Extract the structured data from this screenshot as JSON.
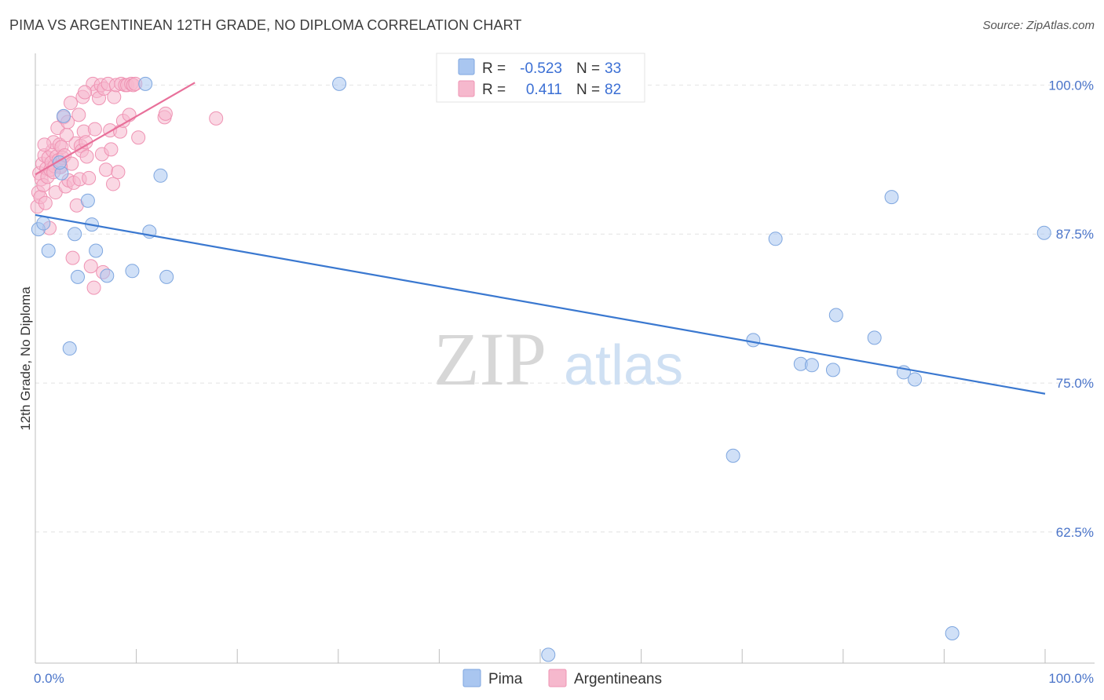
{
  "title": "PIMA VS ARGENTINEAN 12TH GRADE, NO DIPLOMA CORRELATION CHART",
  "source": "Source: ZipAtlas.com",
  "watermark": {
    "zip": "ZIP",
    "atlas": "atlas"
  },
  "legend": {
    "rows": [
      {
        "r_label": "R =",
        "r_value": "-0.523",
        "n_label": "N =",
        "n_value": "33"
      },
      {
        "r_label": "R =",
        "r_value": "0.411",
        "n_label": "N =",
        "n_value": "82"
      }
    ]
  },
  "chart_data": {
    "type": "scatter",
    "xlabel": "",
    "ylabel": "12th Grade, No Diploma",
    "xlim": [
      0,
      100
    ],
    "ylim": [
      51.5,
      102
    ],
    "x_tick_labels": [
      "0.0%",
      "100.0%"
    ],
    "y_ticks": [
      {
        "value": 100,
        "label": "100.0%"
      },
      {
        "value": 87.5,
        "label": "87.5%"
      },
      {
        "value": 75,
        "label": "75.0%"
      },
      {
        "value": 62.5,
        "label": "62.5%"
      }
    ],
    "grid": true,
    "series": [
      {
        "name": "Pima",
        "color": "#a9c6f0",
        "stroke": "#7ea6df",
        "line_color": "#3a78d0",
        "trend": [
          [
            0,
            89.1
          ],
          [
            100,
            74.1
          ]
        ],
        "points": [
          [
            0.3,
            87.9
          ],
          [
            0.8,
            88.4
          ],
          [
            1.3,
            86.1
          ],
          [
            2.6,
            92.6
          ],
          [
            2.8,
            97.4
          ],
          [
            3.4,
            77.9
          ],
          [
            3.9,
            87.5
          ],
          [
            4.2,
            83.9
          ],
          [
            5.2,
            90.3
          ],
          [
            5.6,
            88.3
          ],
          [
            6.0,
            86.1
          ],
          [
            7.1,
            84.0
          ],
          [
            9.6,
            84.4
          ],
          [
            10.9,
            100.1
          ],
          [
            11.3,
            87.7
          ],
          [
            12.4,
            92.4
          ],
          [
            13.0,
            83.9
          ],
          [
            30.1,
            100.1
          ],
          [
            50.8,
            52.2
          ],
          [
            69.1,
            68.9
          ],
          [
            71.1,
            78.6
          ],
          [
            73.3,
            87.1
          ],
          [
            75.8,
            76.6
          ],
          [
            76.9,
            76.5
          ],
          [
            79.0,
            76.1
          ],
          [
            79.3,
            80.7
          ],
          [
            83.1,
            78.8
          ],
          [
            84.8,
            90.6
          ],
          [
            86.0,
            75.9
          ],
          [
            87.1,
            75.3
          ],
          [
            90.8,
            54.0
          ],
          [
            99.9,
            87.6
          ],
          [
            2.4,
            93.5
          ]
        ]
      },
      {
        "name": "Argentineans",
        "color": "#f6b8cd",
        "stroke": "#ef93b3",
        "line_color": "#e8709a",
        "trend": [
          [
            0,
            92.5
          ],
          [
            15.8,
            100.2
          ]
        ],
        "points": [
          [
            0.2,
            89.8
          ],
          [
            0.3,
            91.0
          ],
          [
            0.4,
            92.6
          ],
          [
            0.5,
            90.6
          ],
          [
            0.6,
            92.1
          ],
          [
            0.7,
            93.4
          ],
          [
            0.8,
            91.6
          ],
          [
            0.9,
            94.1
          ],
          [
            1.0,
            90.1
          ],
          [
            1.1,
            93.0
          ],
          [
            1.2,
            92.3
          ],
          [
            1.3,
            93.9
          ],
          [
            1.4,
            88.0
          ],
          [
            1.5,
            92.9
          ],
          [
            1.6,
            93.5
          ],
          [
            1.7,
            94.5
          ],
          [
            1.8,
            95.2
          ],
          [
            1.9,
            93.2
          ],
          [
            2.0,
            91.0
          ],
          [
            2.1,
            94.0
          ],
          [
            2.2,
            96.4
          ],
          [
            2.3,
            93.7
          ],
          [
            2.4,
            95.0
          ],
          [
            2.5,
            93.2
          ],
          [
            2.6,
            94.8
          ],
          [
            2.7,
            93.9
          ],
          [
            2.8,
            97.3
          ],
          [
            2.9,
            94.1
          ],
          [
            3.0,
            91.5
          ],
          [
            3.2,
            96.9
          ],
          [
            3.3,
            92.0
          ],
          [
            3.5,
            98.5
          ],
          [
            3.6,
            93.4
          ],
          [
            3.7,
            85.5
          ],
          [
            3.8,
            91.8
          ],
          [
            4.0,
            95.1
          ],
          [
            4.1,
            89.9
          ],
          [
            4.3,
            97.5
          ],
          [
            4.4,
            92.1
          ],
          [
            4.5,
            94.9
          ],
          [
            4.6,
            94.5
          ],
          [
            4.7,
            99.0
          ],
          [
            4.8,
            96.1
          ],
          [
            5.0,
            95.2
          ],
          [
            5.1,
            94.0
          ],
          [
            5.3,
            92.2
          ],
          [
            5.5,
            84.8
          ],
          [
            5.7,
            100.1
          ],
          [
            5.8,
            83.0
          ],
          [
            5.9,
            96.3
          ],
          [
            6.1,
            99.5
          ],
          [
            6.3,
            98.9
          ],
          [
            6.5,
            100.0
          ],
          [
            6.6,
            94.2
          ],
          [
            6.7,
            84.3
          ],
          [
            6.8,
            99.7
          ],
          [
            7.0,
            92.9
          ],
          [
            7.2,
            100.1
          ],
          [
            7.4,
            96.2
          ],
          [
            7.5,
            94.6
          ],
          [
            7.7,
            91.7
          ],
          [
            7.8,
            99.0
          ],
          [
            8.0,
            100.0
          ],
          [
            8.2,
            92.7
          ],
          [
            8.4,
            96.1
          ],
          [
            8.5,
            100.1
          ],
          [
            8.7,
            97.0
          ],
          [
            8.9,
            100.0
          ],
          [
            9.1,
            100.0
          ],
          [
            9.3,
            97.5
          ],
          [
            9.5,
            100.1
          ],
          [
            9.7,
            100.0
          ],
          [
            9.9,
            100.1
          ],
          [
            10.2,
            95.6
          ],
          [
            12.8,
            97.3
          ],
          [
            12.9,
            97.6
          ],
          [
            17.9,
            97.2
          ],
          [
            2.5,
            93.1
          ],
          [
            3.1,
            95.8
          ],
          [
            1.8,
            92.7
          ],
          [
            0.9,
            95.0
          ],
          [
            4.9,
            99.4
          ]
        ]
      }
    ],
    "bottom_legend": [
      "Pima",
      "Argentineans"
    ]
  }
}
